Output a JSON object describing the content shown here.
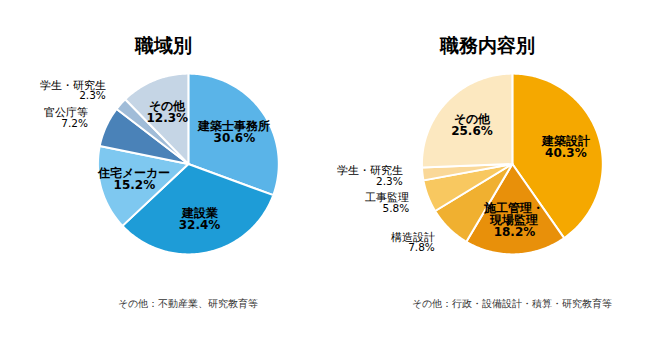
{
  "chart_data": [
    {
      "type": "pie",
      "title": "職域別",
      "categories": [
        "建築士事務所",
        "建設業",
        "住宅メーカー",
        "官公庁等",
        "学生・研究生",
        "その他"
      ],
      "values": [
        30.6,
        32.4,
        15.2,
        7.2,
        2.3,
        12.3
      ],
      "value_labels": [
        "30.6%",
        "32.4%",
        "15.2%",
        "7.2%",
        "2.3%",
        "12.3%"
      ],
      "colors": [
        "#5ab4e8",
        "#1e9cd7",
        "#7ec8f0",
        "#4a82b8",
        "#a0bcd8",
        "#c5d5e5"
      ],
      "data_labels": true,
      "annotations": [
        "その他：不動産業、研究教育等"
      ]
    },
    {
      "type": "pie",
      "title": "職務内容別",
      "categories": [
        "建築設計",
        "施工管理・\n現場監理",
        "構造設計",
        "工事監理",
        "学生・研究生",
        "その他"
      ],
      "values": [
        40.3,
        18.2,
        7.8,
        5.8,
        2.3,
        25.6
      ],
      "value_labels": [
        "40.3%",
        "18.2%",
        "7.8%",
        "5.8%",
        "2.3%",
        "25.6%"
      ],
      "colors": [
        "#f5a800",
        "#e8900a",
        "#f0b030",
        "#f8c860",
        "#fad898",
        "#fce8c0"
      ],
      "data_labels": true,
      "annotations": [
        "その他：行政・設備設計・積算・研究教育等"
      ]
    }
  ]
}
